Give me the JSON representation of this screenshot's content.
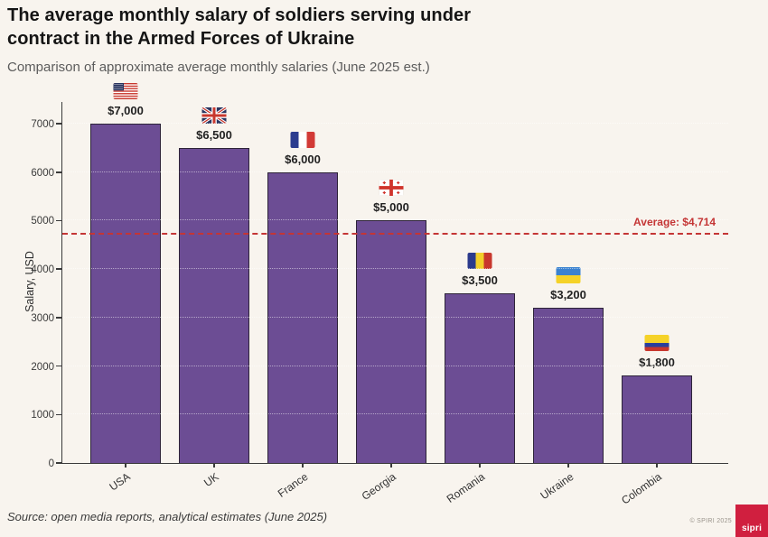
{
  "page": {
    "background": "#f8f4ee"
  },
  "header": {
    "title": "The average monthly salary of soldiers serving under\ncontract in the Armed Forces of Ukraine",
    "subtitle": "Comparison of approximate average monthly salaries (June 2025 est.)"
  },
  "chart_data": {
    "type": "bar",
    "title": "The average monthly salary of soldiers serving under contract in the Armed Forces of Ukraine",
    "subtitle": "Comparison of approximate average monthly salaries (June 2025 est.)",
    "categories": [
      "USA",
      "UK",
      "France",
      "Georgia",
      "Romania",
      "Ukraine",
      "Colombia"
    ],
    "values": [
      7000,
      6500,
      6000,
      5000,
      3500,
      3200,
      1800
    ],
    "value_labels": [
      "$7,000",
      "$6,500",
      "$6,000",
      "$5,000",
      "$3,500",
      "$3,200",
      "$1,800"
    ],
    "flag_icons": [
      "usa-flag-icon",
      "uk-flag-icon",
      "france-flag-icon",
      "georgia-flag-icon",
      "romania-flag-icon",
      "ukraine-flag-icon",
      "colombia-flag-icon"
    ],
    "xlabel": "",
    "ylabel": "Salary, USD",
    "yticks": [
      0,
      1000,
      2000,
      3000,
      4000,
      5000,
      6000,
      7000
    ],
    "ylim": [
      0,
      7450
    ],
    "grid": "horizontal-dotted",
    "bar_color": "#6c4d94",
    "bar_edge_color": "#2d2338",
    "average": {
      "value": 4714,
      "label": "Average: $4,714",
      "color": "#c43535",
      "style": "dashed"
    }
  },
  "footer": {
    "source": "Source: open media reports, analytical estimates (June 2025)",
    "copyright": "© SPIRI 2025",
    "logo_text": "sipri",
    "logo_color": "#d01f3f"
  }
}
